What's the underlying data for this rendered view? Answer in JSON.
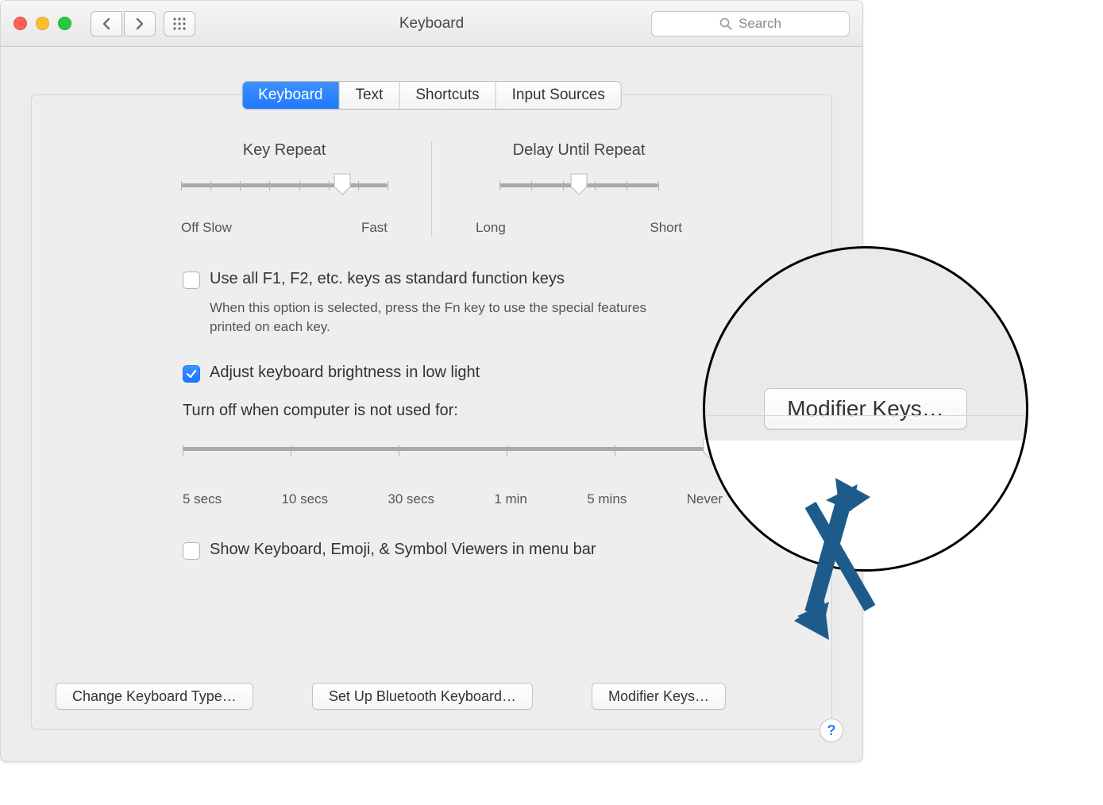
{
  "window": {
    "title": "Keyboard",
    "search_placeholder": "Search"
  },
  "tabs": {
    "items": [
      "Keyboard",
      "Text",
      "Shortcuts",
      "Input Sources"
    ],
    "active_index": 0
  },
  "sliders": {
    "key_repeat": {
      "title": "Key Repeat",
      "left_label": "Off",
      "left_label2": "Slow",
      "right_label": "Fast",
      "value_pct": 78,
      "ticks": 8
    },
    "delay_repeat": {
      "title": "Delay Until Repeat",
      "left_label": "Long",
      "right_label": "Short",
      "value_pct": 50,
      "ticks": 6
    }
  },
  "options": {
    "fn_keys": {
      "checked": false,
      "label": "Use all F1, F2, etc. keys as standard function keys",
      "hint": "When this option is selected, press the Fn key to use the special features printed on each key."
    },
    "brightness": {
      "checked": true,
      "label": "Adjust keyboard brightness in low light"
    },
    "turnoff_label": "Turn off when computer is not used for:",
    "timeout": {
      "labels": [
        "5 secs",
        "10 secs",
        "30 secs",
        "1 min",
        "5 mins",
        "Never"
      ],
      "value_pct": 98
    },
    "show_viewers": {
      "checked": false,
      "label": "Show Keyboard, Emoji, & Symbol Viewers in menu bar"
    }
  },
  "buttons": {
    "change_type": "Change Keyboard Type…",
    "bluetooth": "Set Up Bluetooth Keyboard…",
    "modifier": "Modifier Keys…"
  },
  "callout": {
    "button_label": "Modifier Keys…",
    "arrow_color": "#1d5b8a"
  },
  "colors": {
    "accent": "#2a7bff",
    "panel_bg": "#eeeeee"
  }
}
